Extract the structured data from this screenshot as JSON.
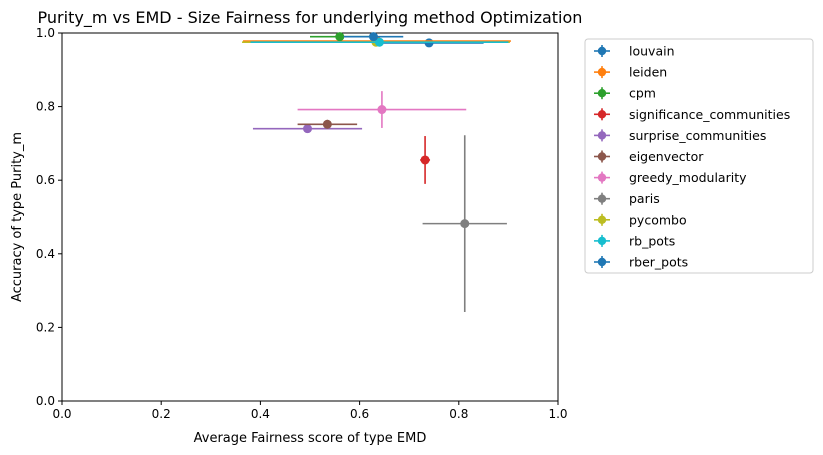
{
  "chart_data": {
    "type": "scatter",
    "title": "Purity_m vs EMD - Size Fairness for underlying method Optimization",
    "xlabel": "Average Fairness score of type EMD",
    "ylabel": "Accuracy of type Purity_m",
    "xlim": [
      0.0,
      1.0
    ],
    "ylim": [
      0.0,
      1.0
    ],
    "xticks": [
      "0.0",
      "0.2",
      "0.4",
      "0.6",
      "0.8",
      "1.0"
    ],
    "yticks": [
      "0.0",
      "0.2",
      "0.4",
      "0.6",
      "0.8",
      "1.0"
    ],
    "grid": false,
    "legend_position": "outside-right",
    "series": [
      {
        "name": "louvain",
        "color": "#1f77b4",
        "x": 0.74,
        "y": 0.973,
        "xerr": 0.11,
        "yerr": 0.008
      },
      {
        "name": "leiden",
        "color": "#ff7f0e",
        "x": 0.635,
        "y": 0.978,
        "xerr": 0.27,
        "yerr": 0.006
      },
      {
        "name": "cpm",
        "color": "#2ca02c",
        "x": 0.56,
        "y": 0.99,
        "xerr": 0.06,
        "yerr": 0.004
      },
      {
        "name": "significance_communities",
        "color": "#d62728",
        "x": 0.732,
        "y": 0.655,
        "xerr": 0.01,
        "yerr": 0.065
      },
      {
        "name": "surprise_communities",
        "color": "#9467bd",
        "x": 0.495,
        "y": 0.74,
        "xerr": 0.11,
        "yerr": 0.01
      },
      {
        "name": "eigenvector",
        "color": "#8c564b",
        "x": 0.535,
        "y": 0.752,
        "xerr": 0.06,
        "yerr": 0.012
      },
      {
        "name": "greedy_modularity",
        "color": "#e377c2",
        "x": 0.645,
        "y": 0.792,
        "xerr": 0.17,
        "yerr": 0.05
      },
      {
        "name": "paris",
        "color": "#7f7f7f",
        "x": 0.812,
        "y": 0.482,
        "xerr": 0.085,
        "yerr": 0.24
      },
      {
        "name": "pycombo",
        "color": "#bcbd22",
        "x": 0.633,
        "y": 0.975,
        "xerr": 0.27,
        "yerr": 0.006
      },
      {
        "name": "rb_pots",
        "color": "#17becf",
        "x": 0.64,
        "y": 0.975,
        "xerr": 0.26,
        "yerr": 0.006
      },
      {
        "name": "rber_pots",
        "color": "#1f77b4",
        "x": 0.628,
        "y": 0.99,
        "xerr": 0.06,
        "yerr": 0.004
      }
    ]
  }
}
